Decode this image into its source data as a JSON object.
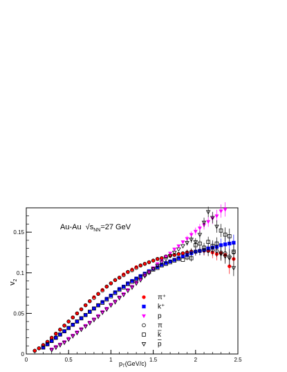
{
  "chart_data": {
    "type": "scatter",
    "title": "",
    "annotation": {
      "system": "Au-Au",
      "sqrt": "√",
      "s": "s",
      "sub": "NN",
      "energy": "=27 GeV"
    },
    "xlabel": {
      "main": "p",
      "sub": "T",
      "unit": "(GeV/c)"
    },
    "ylabel": {
      "main": "v",
      "sub": "2"
    },
    "xlim": [
      0,
      2.5
    ],
    "ylim": [
      0,
      0.18
    ],
    "xticks": [
      0,
      0.5,
      1,
      1.5,
      2,
      2.5
    ],
    "xtick_labels": [
      "0",
      "0.5",
      "1",
      "1.5",
      "2",
      "2.5"
    ],
    "yticks": [
      0,
      0.05,
      0.1,
      0.15
    ],
    "ytick_labels": [
      "0",
      "0.05",
      "0.1",
      "0.15"
    ],
    "legend_position": "bottom-center",
    "series": [
      {
        "name": "π⁺",
        "marker": "circle-filled",
        "color": "#ff0000",
        "x": [
          0.1,
          0.15,
          0.2,
          0.25,
          0.3,
          0.35,
          0.4,
          0.45,
          0.5,
          0.55,
          0.6,
          0.65,
          0.7,
          0.75,
          0.8,
          0.85,
          0.9,
          0.95,
          1.0,
          1.05,
          1.1,
          1.15,
          1.2,
          1.25,
          1.3,
          1.35,
          1.4,
          1.45,
          1.5,
          1.55,
          1.6,
          1.65,
          1.7,
          1.75,
          1.8,
          1.85,
          1.9,
          1.95,
          2.0,
          2.05,
          2.1,
          2.15,
          2.2,
          2.25,
          2.3,
          2.35,
          2.4,
          2.45
        ],
        "y": [
          0.004,
          0.007,
          0.011,
          0.015,
          0.02,
          0.025,
          0.03,
          0.035,
          0.04,
          0.045,
          0.05,
          0.055,
          0.06,
          0.065,
          0.07,
          0.074,
          0.079,
          0.083,
          0.087,
          0.091,
          0.094,
          0.098,
          0.101,
          0.104,
          0.107,
          0.109,
          0.111,
          0.113,
          0.115,
          0.117,
          0.118,
          0.12,
          0.121,
          0.122,
          0.123,
          0.124,
          0.125,
          0.126,
          0.126,
          0.127,
          0.127,
          0.127,
          0.125,
          0.123,
          0.124,
          0.122,
          0.108,
          0.117
        ]
      },
      {
        "name": "k⁺",
        "marker": "square-filled",
        "color": "#0000ff",
        "x": [
          0.2,
          0.25,
          0.3,
          0.35,
          0.4,
          0.45,
          0.5,
          0.55,
          0.6,
          0.65,
          0.7,
          0.75,
          0.8,
          0.85,
          0.9,
          0.95,
          1.0,
          1.05,
          1.1,
          1.15,
          1.2,
          1.25,
          1.3,
          1.35,
          1.4,
          1.45,
          1.5,
          1.55,
          1.6,
          1.65,
          1.7,
          1.75,
          1.8,
          1.85,
          1.9,
          1.95,
          2.0,
          2.05,
          2.1,
          2.15,
          2.2,
          2.25,
          2.3,
          2.35,
          2.4,
          2.45
        ],
        "y": [
          0.008,
          0.012,
          0.016,
          0.02,
          0.024,
          0.028,
          0.032,
          0.036,
          0.04,
          0.044,
          0.048,
          0.052,
          0.056,
          0.06,
          0.064,
          0.068,
          0.072,
          0.076,
          0.08,
          0.083,
          0.087,
          0.09,
          0.093,
          0.096,
          0.099,
          0.102,
          0.105,
          0.107,
          0.11,
          0.112,
          0.114,
          0.116,
          0.118,
          0.12,
          0.122,
          0.124,
          0.126,
          0.127,
          0.128,
          0.13,
          0.131,
          0.132,
          0.134,
          0.135,
          0.136,
          0.137
        ]
      },
      {
        "name": "p",
        "marker": "triangle-down-filled",
        "color": "#ff00ff",
        "x": [
          0.3,
          0.35,
          0.4,
          0.45,
          0.5,
          0.55,
          0.6,
          0.65,
          0.7,
          0.75,
          0.8,
          0.85,
          0.9,
          0.95,
          1.0,
          1.05,
          1.1,
          1.15,
          1.2,
          1.25,
          1.3,
          1.35,
          1.4,
          1.45,
          1.5,
          1.55,
          1.6,
          1.65,
          1.7,
          1.75,
          1.8,
          1.85,
          1.9,
          1.95,
          2.0,
          2.05,
          2.1,
          2.15,
          2.2,
          2.25,
          2.3,
          2.35
        ],
        "y": [
          0.006,
          0.009,
          0.012,
          0.015,
          0.019,
          0.023,
          0.027,
          0.031,
          0.035,
          0.039,
          0.043,
          0.047,
          0.052,
          0.056,
          0.061,
          0.065,
          0.07,
          0.074,
          0.079,
          0.083,
          0.088,
          0.092,
          0.097,
          0.101,
          0.106,
          0.111,
          0.115,
          0.12,
          0.124,
          0.129,
          0.133,
          0.138,
          0.142,
          0.147,
          0.151,
          0.155,
          0.159,
          0.163,
          0.167,
          0.17,
          0.176,
          0.178
        ]
      },
      {
        "name": "π",
        "bar": false,
        "marker": "circle-open",
        "color": "#000000",
        "x": [
          0.1,
          0.15,
          0.2,
          0.25,
          0.3,
          0.35,
          0.4,
          0.45,
          0.5,
          0.55,
          0.6,
          0.65,
          0.7,
          0.75,
          0.8,
          0.85,
          0.9,
          0.95,
          1.0,
          1.05,
          1.1,
          1.15,
          1.2,
          1.25,
          1.3,
          1.35,
          1.4,
          1.45,
          1.5,
          1.55,
          1.6,
          1.65,
          1.7,
          1.75,
          1.8,
          1.85,
          1.9,
          1.95,
          2.0,
          2.05,
          2.1,
          2.15,
          2.2,
          2.25,
          2.3,
          2.35,
          2.4,
          2.45
        ],
        "y": [
          0.004,
          0.007,
          0.011,
          0.015,
          0.02,
          0.025,
          0.03,
          0.035,
          0.04,
          0.045,
          0.05,
          0.055,
          0.06,
          0.065,
          0.069,
          0.074,
          0.078,
          0.083,
          0.087,
          0.091,
          0.094,
          0.097,
          0.101,
          0.103,
          0.106,
          0.109,
          0.111,
          0.113,
          0.115,
          0.117,
          0.118,
          0.12,
          0.121,
          0.122,
          0.123,
          0.124,
          0.125,
          0.126,
          0.126,
          0.127,
          0.128,
          0.127,
          0.128,
          0.127,
          0.125,
          0.124,
          0.12,
          0.125
        ]
      },
      {
        "name": "k",
        "bar": true,
        "marker": "square-open",
        "color": "#000000",
        "x": [
          0.2,
          0.25,
          0.3,
          0.35,
          0.4,
          0.45,
          0.5,
          0.55,
          0.6,
          0.65,
          0.7,
          0.75,
          0.8,
          0.85,
          0.9,
          0.95,
          1.0,
          1.05,
          1.1,
          1.15,
          1.2,
          1.25,
          1.3,
          1.35,
          1.4,
          1.45,
          1.5,
          1.55,
          1.6,
          1.65,
          1.7,
          1.75,
          1.8,
          1.85,
          1.9,
          1.95,
          2.0,
          2.05,
          2.1,
          2.15,
          2.2,
          2.25,
          2.3,
          2.35,
          2.4,
          2.45
        ],
        "y": [
          0.008,
          0.012,
          0.016,
          0.02,
          0.024,
          0.028,
          0.032,
          0.036,
          0.04,
          0.044,
          0.048,
          0.052,
          0.056,
          0.06,
          0.063,
          0.067,
          0.071,
          0.075,
          0.079,
          0.082,
          0.086,
          0.089,
          0.092,
          0.095,
          0.098,
          0.101,
          0.104,
          0.106,
          0.109,
          0.111,
          0.113,
          0.115,
          0.117,
          0.116,
          0.119,
          0.118,
          0.134,
          0.136,
          0.131,
          0.138,
          0.133,
          0.136,
          0.152,
          0.147,
          0.145,
          0.126
        ]
      },
      {
        "name": "p",
        "bar": true,
        "marker": "triangle-down-open",
        "color": "#000000",
        "x": [
          0.3,
          0.35,
          0.4,
          0.45,
          0.5,
          0.55,
          0.6,
          0.65,
          0.7,
          0.75,
          0.8,
          0.85,
          0.9,
          0.95,
          1.0,
          1.05,
          1.1,
          1.15,
          1.2,
          1.25,
          1.3,
          1.35,
          1.4,
          1.45,
          1.5,
          1.55,
          1.6,
          1.65,
          1.7,
          1.75,
          1.8,
          1.85,
          1.9,
          1.95,
          2.0,
          2.05,
          2.1,
          2.15,
          2.2,
          2.25,
          2.3,
          2.35,
          2.4,
          2.45
        ],
        "y": [
          0.005,
          0.008,
          0.011,
          0.014,
          0.018,
          0.022,
          0.026,
          0.03,
          0.034,
          0.038,
          0.042,
          0.046,
          0.051,
          0.055,
          0.06,
          0.064,
          0.069,
          0.073,
          0.078,
          0.082,
          0.087,
          0.091,
          0.096,
          0.1,
          0.105,
          0.109,
          0.113,
          0.117,
          0.121,
          0.125,
          0.129,
          0.133,
          0.137,
          0.141,
          0.138,
          0.147,
          0.162,
          0.175,
          0.168,
          0.157,
          0.123,
          0.12,
          0.118,
          0.106
        ]
      }
    ]
  }
}
